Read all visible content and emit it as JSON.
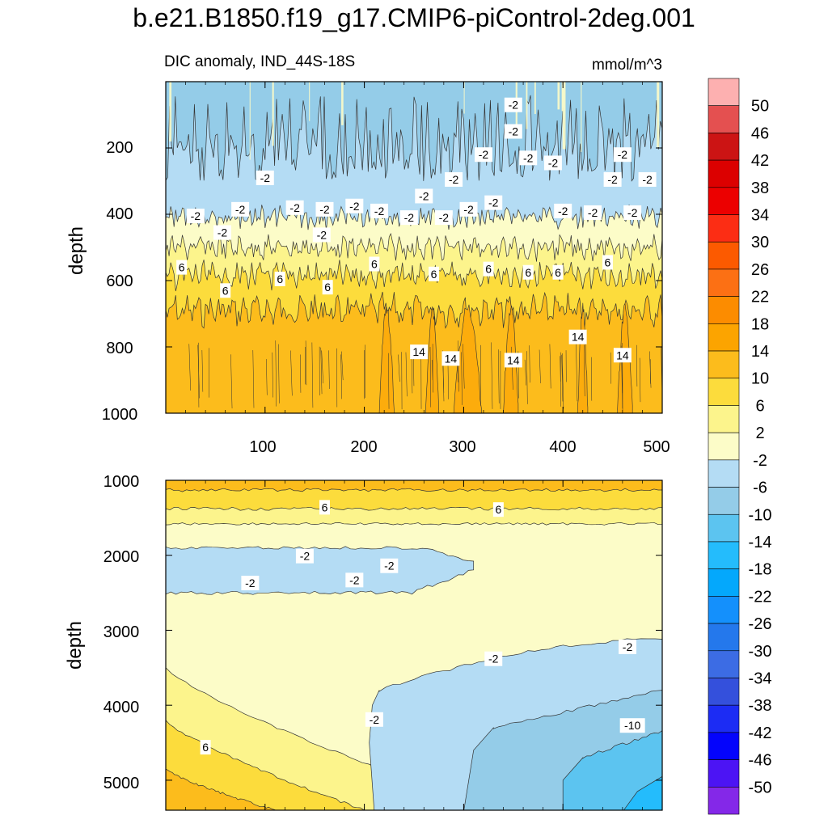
{
  "title": "b.e21.B1850.f19_g17.CMIP6-piControl-2deg.001",
  "chart_data": {
    "type": "contour",
    "subtitle_left": "DIC anomaly, IND_44S-18S",
    "units": "mmol/m^3",
    "colorbar": {
      "levels": [
        "50",
        "46",
        "42",
        "38",
        "34",
        "30",
        "26",
        "22",
        "18",
        "14",
        "10",
        "6",
        "2",
        "-2",
        "-6",
        "-10",
        "-14",
        "-18",
        "-22",
        "-26",
        "-30",
        "-34",
        "-38",
        "-42",
        "-46",
        "-50"
      ],
      "colors": [
        "#fdb0b0",
        "#e45050",
        "#cc1414",
        "#dc0000",
        "#ec0000",
        "#fc2d14",
        "#fc5a00",
        "#fc7014",
        "#fc8c00",
        "#fca400",
        "#fcbc1c",
        "#fcdc3c",
        "#fcf48c",
        "#fcfcc8",
        "#b4dcf4",
        "#94cce8",
        "#5cc4f0",
        "#24bcfc",
        "#04a8fc",
        "#1490fc",
        "#2478ec",
        "#3c6ce4",
        "#3450dc",
        "#1c2cf4",
        "#0404fc",
        "#4c14f4",
        "#8428e8"
      ]
    },
    "panels": [
      {
        "id": "upper",
        "ylabel": "depth",
        "ylim": [
          0,
          1000
        ],
        "xlim": [
          0,
          500
        ],
        "yticks": [
          "200",
          "400",
          "600",
          "800",
          "1000"
        ],
        "xticks": [
          "100",
          "200",
          "300",
          "400",
          "500"
        ],
        "layers": [
          {
            "level": "-6",
            "color": "#94cce8",
            "depth_top": 0,
            "depth_bottom": 280
          },
          {
            "level": "-2",
            "color": "#b4dcf4",
            "depth_top": 0,
            "depth_bottom": 410
          },
          {
            "level": "2",
            "color": "#fcfcc8",
            "depth_top": 410,
            "depth_bottom": 500
          },
          {
            "level": "6",
            "color": "#fcf48c",
            "depth_top": 500,
            "depth_bottom": 580
          },
          {
            "level": "10",
            "color": "#fcdc3c",
            "depth_top": 580,
            "depth_bottom": 690
          },
          {
            "level": "14",
            "color": "#fcbc1c",
            "depth_top": 690,
            "depth_bottom": 1000
          }
        ],
        "contour_labels": [
          {
            "text": "-2",
            "x": 350,
            "y": 70
          },
          {
            "text": "-2",
            "x": 350,
            "y": 150
          },
          {
            "text": "-2",
            "x": 320,
            "y": 220
          },
          {
            "text": "-2",
            "x": 365,
            "y": 230
          },
          {
            "text": "-2",
            "x": 390,
            "y": 245
          },
          {
            "text": "-2",
            "x": 460,
            "y": 220
          },
          {
            "text": "-2",
            "x": 100,
            "y": 290
          },
          {
            "text": "-2",
            "x": 290,
            "y": 295
          },
          {
            "text": "-2",
            "x": 450,
            "y": 295
          },
          {
            "text": "-2",
            "x": 485,
            "y": 295
          },
          {
            "text": "-2",
            "x": 260,
            "y": 345
          },
          {
            "text": "-2",
            "x": 330,
            "y": 365
          },
          {
            "text": "-2",
            "x": 190,
            "y": 375
          },
          {
            "text": "-2",
            "x": 130,
            "y": 380
          },
          {
            "text": "-2",
            "x": 160,
            "y": 385
          },
          {
            "text": "-2",
            "x": 75,
            "y": 385
          },
          {
            "text": "-2",
            "x": 305,
            "y": 385
          },
          {
            "text": "-2",
            "x": 215,
            "y": 390
          },
          {
            "text": "-2",
            "x": 400,
            "y": 390
          },
          {
            "text": "-2",
            "x": 430,
            "y": 395
          },
          {
            "text": "-2",
            "x": 470,
            "y": 395
          },
          {
            "text": "-2",
            "x": 30,
            "y": 405
          },
          {
            "text": "-2",
            "x": 245,
            "y": 410
          },
          {
            "text": "-2",
            "x": 280,
            "y": 410
          },
          {
            "text": "-2",
            "x": 57,
            "y": 455
          },
          {
            "text": "-2",
            "x": 157,
            "y": 462
          },
          {
            "text": "6",
            "x": 210,
            "y": 550
          },
          {
            "text": "6",
            "x": 445,
            "y": 545
          },
          {
            "text": "6",
            "x": 16,
            "y": 560
          },
          {
            "text": "6",
            "x": 325,
            "y": 565
          },
          {
            "text": "6",
            "x": 365,
            "y": 575
          },
          {
            "text": "6",
            "x": 395,
            "y": 575
          },
          {
            "text": "6",
            "x": 270,
            "y": 580
          },
          {
            "text": "6",
            "x": 115,
            "y": 595
          },
          {
            "text": "6",
            "x": 163,
            "y": 620
          },
          {
            "text": "6",
            "x": 60,
            "y": 630
          },
          {
            "text": "14",
            "x": 415,
            "y": 770
          },
          {
            "text": "14",
            "x": 255,
            "y": 815
          },
          {
            "text": "14",
            "x": 287,
            "y": 835
          },
          {
            "text": "14",
            "x": 460,
            "y": 825
          },
          {
            "text": "14",
            "x": 350,
            "y": 840
          }
        ]
      },
      {
        "id": "lower",
        "ylabel": "depth",
        "ylim": [
          1000,
          5400
        ],
        "xlim": [
          0,
          500
        ],
        "yticks": [
          "1000",
          "2000",
          "3000",
          "4000",
          "5000"
        ],
        "layers": [
          {
            "level": "10",
            "color": "#fcdc3c",
            "note": "top band 1000-1600"
          },
          {
            "level": "2",
            "color": "#fcfcc8",
            "note": "mid"
          },
          {
            "level": "-2",
            "color": "#b4dcf4",
            "note": "lens 1900-2500 and deep east"
          },
          {
            "level": "-6",
            "color": "#94cce8"
          },
          {
            "level": "-10",
            "color": "#5cc4f0"
          },
          {
            "level": "-14",
            "color": "#24bcfc"
          }
        ],
        "contour_labels": [
          {
            "text": "6",
            "x": 160,
            "y": 1360
          },
          {
            "text": "6",
            "x": 335,
            "y": 1390
          },
          {
            "text": "-2",
            "x": 140,
            "y": 2010
          },
          {
            "text": "-2",
            "x": 225,
            "y": 2140
          },
          {
            "text": "-2",
            "x": 190,
            "y": 2330
          },
          {
            "text": "-2",
            "x": 85,
            "y": 2370
          },
          {
            "text": "-2",
            "x": 465,
            "y": 3220
          },
          {
            "text": "-2",
            "x": 330,
            "y": 3380
          },
          {
            "text": "-2",
            "x": 210,
            "y": 4190
          },
          {
            "text": "-10",
            "x": 470,
            "y": 4270
          },
          {
            "text": "6",
            "x": 40,
            "y": 4560
          }
        ]
      }
    ]
  }
}
